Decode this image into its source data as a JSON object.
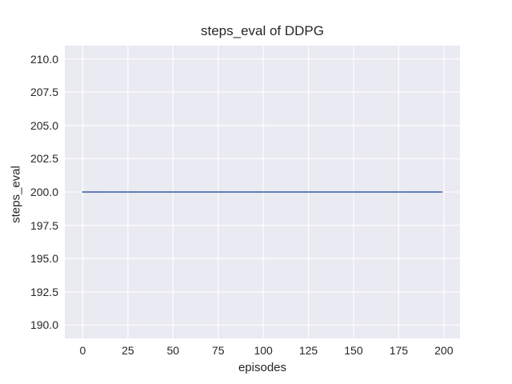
{
  "chart_data": {
    "type": "line",
    "title": "steps_eval of DDPG",
    "xlabel": "episodes",
    "ylabel": "steps_eval",
    "xlim": [
      -9.95,
      208.95
    ],
    "ylim": [
      189,
      211
    ],
    "x_ticks": [
      0,
      25,
      50,
      75,
      100,
      125,
      150,
      175,
      200
    ],
    "x_tick_labels": [
      "0",
      "25",
      "50",
      "75",
      "100",
      "125",
      "150",
      "175",
      "200"
    ],
    "y_ticks": [
      190.0,
      192.5,
      195.0,
      197.5,
      200.0,
      202.5,
      205.0,
      207.5,
      210.0
    ],
    "y_tick_labels": [
      "190.0",
      "192.5",
      "195.0",
      "197.5",
      "200.0",
      "202.5",
      "205.0",
      "207.5",
      "210.0"
    ],
    "grid": true,
    "legend": false,
    "series": [
      {
        "x": [
          0,
          199
        ],
        "y": [
          200,
          200
        ],
        "color": "#4c72b0",
        "linewidth": 1.8
      }
    ],
    "colors": {
      "figure_background": "#ffffff",
      "plot_background": "#eaeaf2",
      "grid_line": "#ffffff",
      "text": "#262626"
    }
  }
}
